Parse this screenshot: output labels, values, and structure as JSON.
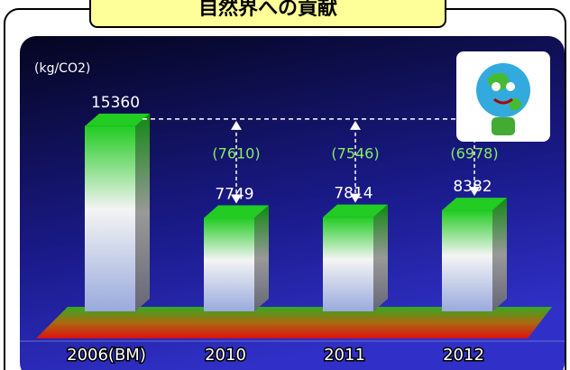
{
  "title": "自然界への貢献",
  "chart_data": {
    "type": "bar3d",
    "unit_label": "(kg/CO2)",
    "categories": [
      "2006(BM)",
      "2010",
      "2011",
      "2012"
    ],
    "values": [
      15360,
      7749,
      7814,
      8382
    ],
    "annotations": [
      "(7610)",
      "(7546)",
      "(6978)"
    ],
    "color": "#22cc22",
    "ylim": [
      0,
      17000
    ]
  }
}
